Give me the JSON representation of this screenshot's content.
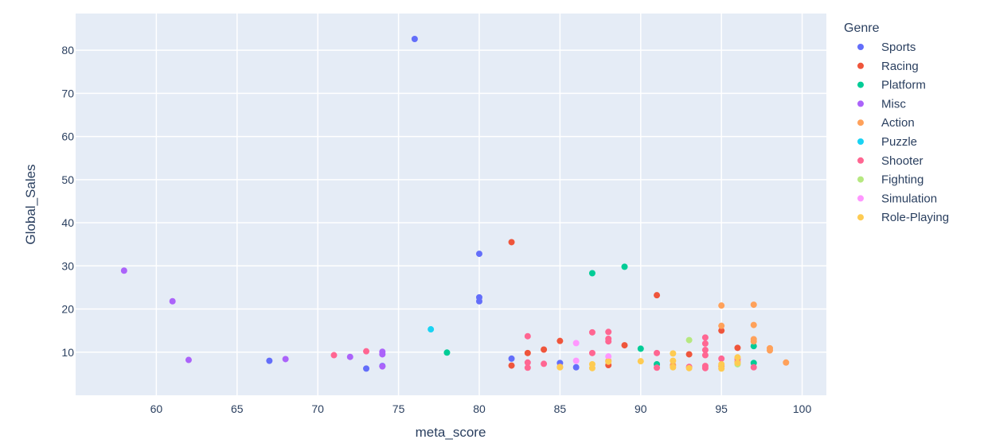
{
  "chart_data": {
    "type": "scatter",
    "xlabel": "meta_score",
    "ylabel": "Global_Sales",
    "xlim": [
      55,
      101.5
    ],
    "ylim": [
      0,
      88.5
    ],
    "x_ticks": [
      60,
      65,
      70,
      75,
      80,
      85,
      90,
      95,
      100
    ],
    "y_ticks": [
      10,
      20,
      30,
      40,
      50,
      60,
      70,
      80
    ],
    "grid": true,
    "plot_bg": "#E5ECF6",
    "grid_color": "#FFFFFF",
    "legend": {
      "title": "Genre",
      "placement": "right"
    },
    "series": [
      {
        "name": "Sports",
        "color": "#636EFA",
        "points": [
          [
            76,
            82.6
          ],
          [
            80,
            32.8
          ],
          [
            80,
            22.7
          ],
          [
            80,
            21.8
          ],
          [
            82,
            8.5
          ],
          [
            85,
            7.5
          ],
          [
            86,
            6.5
          ],
          [
            67,
            8.0
          ],
          [
            73,
            6.2
          ],
          [
            74,
            6.8
          ]
        ]
      },
      {
        "name": "Racing",
        "color": "#EF553B",
        "points": [
          [
            82,
            35.5
          ],
          [
            91,
            23.2
          ],
          [
            82,
            6.9
          ],
          [
            83,
            9.8
          ],
          [
            84,
            10.6
          ],
          [
            85,
            12.6
          ],
          [
            88,
            7.0
          ],
          [
            89,
            11.6
          ],
          [
            93,
            9.5
          ],
          [
            95,
            15.0
          ],
          [
            96,
            11.0
          ]
        ]
      },
      {
        "name": "Platform",
        "color": "#00CC96",
        "points": [
          [
            87,
            28.3
          ],
          [
            89,
            29.8
          ],
          [
            78,
            9.9
          ],
          [
            90,
            10.8
          ],
          [
            91,
            7.2
          ],
          [
            97,
            11.4
          ],
          [
            97,
            7.5
          ]
        ]
      },
      {
        "name": "Misc",
        "color": "#AB63FA",
        "points": [
          [
            58,
            28.9
          ],
          [
            61,
            21.8
          ],
          [
            62,
            8.2
          ],
          [
            68,
            8.4
          ],
          [
            72,
            8.9
          ],
          [
            74,
            9.5
          ],
          [
            74,
            10.1
          ],
          [
            74,
            6.7
          ]
        ]
      },
      {
        "name": "Action",
        "color": "#FFA15A",
        "points": [
          [
            95,
            20.8
          ],
          [
            97,
            21.0
          ],
          [
            95,
            16.1
          ],
          [
            97,
            16.3
          ],
          [
            97,
            13.0
          ],
          [
            97,
            12.5
          ],
          [
            98,
            10.9
          ],
          [
            98,
            10.4
          ],
          [
            99,
            7.6
          ],
          [
            96,
            7.8
          ],
          [
            95,
            6.8
          ],
          [
            92,
            7.0
          ],
          [
            88,
            8.0
          ],
          [
            85,
            6.6
          ]
        ]
      },
      {
        "name": "Puzzle",
        "color": "#19D3F3",
        "points": [
          [
            77,
            15.3
          ]
        ]
      },
      {
        "name": "Shooter",
        "color": "#FF6692",
        "points": [
          [
            71,
            9.3
          ],
          [
            73,
            10.2
          ],
          [
            83,
            13.7
          ],
          [
            83,
            7.6
          ],
          [
            83,
            6.4
          ],
          [
            84,
            7.3
          ],
          [
            87,
            14.6
          ],
          [
            87,
            9.8
          ],
          [
            88,
            14.7
          ],
          [
            88,
            13.1
          ],
          [
            88,
            12.5
          ],
          [
            91,
            9.8
          ],
          [
            91,
            6.4
          ],
          [
            93,
            6.6
          ],
          [
            94,
            13.4
          ],
          [
            94,
            12.0
          ],
          [
            94,
            10.5
          ],
          [
            94,
            9.3
          ],
          [
            94,
            6.8
          ],
          [
            94,
            6.3
          ],
          [
            95,
            8.5
          ],
          [
            96,
            8.4
          ],
          [
            97,
            6.5
          ]
        ]
      },
      {
        "name": "Fighting",
        "color": "#B6E880",
        "points": [
          [
            93,
            12.8
          ],
          [
            96,
            7.2
          ]
        ]
      },
      {
        "name": "Simulation",
        "color": "#FF97FF",
        "points": [
          [
            86,
            12.1
          ],
          [
            86,
            8.0
          ],
          [
            88,
            9.0
          ]
        ]
      },
      {
        "name": "Role-Playing",
        "color": "#FECB52",
        "points": [
          [
            85,
            6.5
          ],
          [
            87,
            7.2
          ],
          [
            87,
            6.3
          ],
          [
            88,
            7.8
          ],
          [
            90,
            7.9
          ],
          [
            92,
            9.7
          ],
          [
            92,
            8.0
          ],
          [
            92,
            6.5
          ],
          [
            93,
            6.3
          ],
          [
            95,
            7.2
          ],
          [
            95,
            6.2
          ],
          [
            96,
            8.8
          ],
          [
            96,
            7.5
          ]
        ]
      }
    ]
  }
}
